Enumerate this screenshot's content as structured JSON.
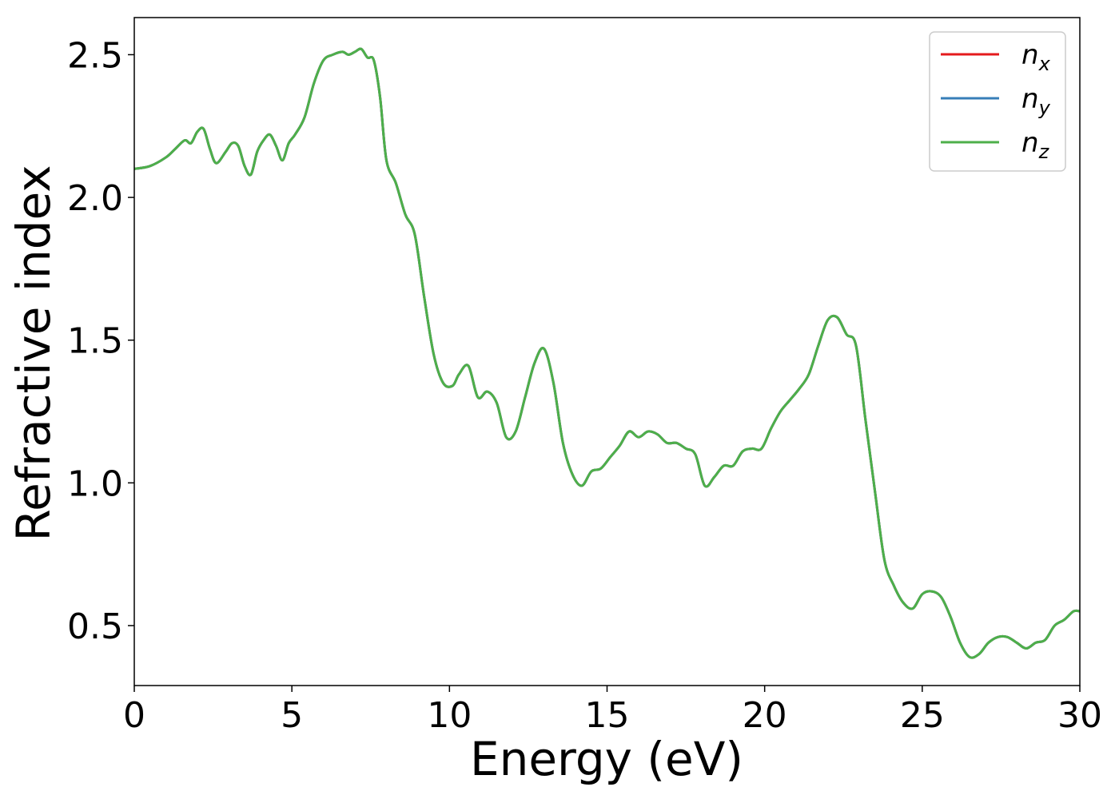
{
  "chart_data": {
    "type": "line",
    "title": "",
    "xlabel": "Energy (eV)",
    "ylabel": "Refractive index",
    "xlim": [
      0,
      30
    ],
    "ylim": [
      0.29,
      2.63
    ],
    "xticks": [
      0,
      5,
      10,
      15,
      20,
      25,
      30
    ],
    "xtick_labels": [
      "0",
      "5",
      "10",
      "15",
      "20",
      "25",
      "30"
    ],
    "yticks": [
      0.5,
      1.0,
      1.5,
      2.0,
      2.5
    ],
    "ytick_labels": [
      "0.5",
      "1.0",
      "1.5",
      "2.0",
      "2.5"
    ],
    "grid": false,
    "legend_position": "top-right",
    "x": [
      0.0,
      0.5,
      1.0,
      1.3,
      1.6,
      1.8,
      2.0,
      2.2,
      2.4,
      2.6,
      2.9,
      3.1,
      3.3,
      3.5,
      3.7,
      3.9,
      4.1,
      4.3,
      4.5,
      4.7,
      4.9,
      5.1,
      5.4,
      5.7,
      6.0,
      6.3,
      6.6,
      6.8,
      7.0,
      7.2,
      7.4,
      7.6,
      7.8,
      8.0,
      8.3,
      8.6,
      8.9,
      9.2,
      9.5,
      9.8,
      10.1,
      10.3,
      10.6,
      10.9,
      11.2,
      11.5,
      11.8,
      12.1,
      12.4,
      12.7,
      13.0,
      13.3,
      13.6,
      13.9,
      14.2,
      14.5,
      14.8,
      15.1,
      15.4,
      15.7,
      16.0,
      16.3,
      16.6,
      16.9,
      17.2,
      17.5,
      17.8,
      18.1,
      18.4,
      18.7,
      19.0,
      19.3,
      19.6,
      19.9,
      20.2,
      20.5,
      20.8,
      21.1,
      21.4,
      21.7,
      22.0,
      22.3,
      22.6,
      22.9,
      23.2,
      23.5,
      23.8,
      24.1,
      24.4,
      24.7,
      25.0,
      25.3,
      25.6,
      25.9,
      26.2,
      26.5,
      26.8,
      27.1,
      27.4,
      27.7,
      28.0,
      28.3,
      28.6,
      28.9,
      29.2,
      29.5,
      29.8,
      30.0
    ],
    "series": [
      {
        "name": "n_x",
        "color": "#e41a1c",
        "values": [
          2.1,
          2.11,
          2.14,
          2.17,
          2.2,
          2.19,
          2.23,
          2.24,
          2.17,
          2.12,
          2.16,
          2.19,
          2.18,
          2.11,
          2.08,
          2.16,
          2.2,
          2.22,
          2.18,
          2.13,
          2.19,
          2.22,
          2.28,
          2.4,
          2.48,
          2.5,
          2.51,
          2.5,
          2.51,
          2.52,
          2.49,
          2.48,
          2.35,
          2.13,
          2.05,
          1.94,
          1.87,
          1.65,
          1.45,
          1.35,
          1.34,
          1.38,
          1.41,
          1.3,
          1.32,
          1.28,
          1.16,
          1.18,
          1.3,
          1.42,
          1.47,
          1.35,
          1.14,
          1.03,
          0.99,
          1.04,
          1.05,
          1.09,
          1.13,
          1.18,
          1.16,
          1.18,
          1.17,
          1.14,
          1.14,
          1.12,
          1.1,
          0.99,
          1.02,
          1.06,
          1.06,
          1.11,
          1.12,
          1.12,
          1.19,
          1.25,
          1.29,
          1.33,
          1.38,
          1.48,
          1.57,
          1.58,
          1.52,
          1.48,
          1.22,
          0.97,
          0.73,
          0.64,
          0.58,
          0.56,
          0.61,
          0.62,
          0.6,
          0.53,
          0.44,
          0.39,
          0.4,
          0.44,
          0.46,
          0.46,
          0.44,
          0.42,
          0.44,
          0.45,
          0.5,
          0.52,
          0.55,
          0.55
        ]
      },
      {
        "name": "n_y",
        "color": "#377eb8",
        "values": [
          2.1,
          2.11,
          2.14,
          2.17,
          2.2,
          2.19,
          2.23,
          2.24,
          2.17,
          2.12,
          2.16,
          2.19,
          2.18,
          2.11,
          2.08,
          2.16,
          2.2,
          2.22,
          2.18,
          2.13,
          2.19,
          2.22,
          2.28,
          2.4,
          2.48,
          2.5,
          2.51,
          2.5,
          2.51,
          2.52,
          2.49,
          2.48,
          2.35,
          2.13,
          2.05,
          1.94,
          1.87,
          1.65,
          1.45,
          1.35,
          1.34,
          1.38,
          1.41,
          1.3,
          1.32,
          1.28,
          1.16,
          1.18,
          1.3,
          1.42,
          1.47,
          1.35,
          1.14,
          1.03,
          0.99,
          1.04,
          1.05,
          1.09,
          1.13,
          1.18,
          1.16,
          1.18,
          1.17,
          1.14,
          1.14,
          1.12,
          1.1,
          0.99,
          1.02,
          1.06,
          1.06,
          1.11,
          1.12,
          1.12,
          1.19,
          1.25,
          1.29,
          1.33,
          1.38,
          1.48,
          1.57,
          1.58,
          1.52,
          1.48,
          1.22,
          0.97,
          0.73,
          0.64,
          0.58,
          0.56,
          0.61,
          0.62,
          0.6,
          0.53,
          0.44,
          0.39,
          0.4,
          0.44,
          0.46,
          0.46,
          0.44,
          0.42,
          0.44,
          0.45,
          0.5,
          0.52,
          0.55,
          0.55
        ]
      },
      {
        "name": "n_z",
        "color": "#4daf4a",
        "values": [
          2.1,
          2.11,
          2.14,
          2.17,
          2.2,
          2.19,
          2.23,
          2.24,
          2.17,
          2.12,
          2.16,
          2.19,
          2.18,
          2.11,
          2.08,
          2.16,
          2.2,
          2.22,
          2.18,
          2.13,
          2.19,
          2.22,
          2.28,
          2.4,
          2.48,
          2.5,
          2.51,
          2.5,
          2.51,
          2.52,
          2.49,
          2.48,
          2.35,
          2.13,
          2.05,
          1.94,
          1.87,
          1.65,
          1.45,
          1.35,
          1.34,
          1.38,
          1.41,
          1.3,
          1.32,
          1.28,
          1.16,
          1.18,
          1.3,
          1.42,
          1.47,
          1.35,
          1.14,
          1.03,
          0.99,
          1.04,
          1.05,
          1.09,
          1.13,
          1.18,
          1.16,
          1.18,
          1.17,
          1.14,
          1.14,
          1.12,
          1.1,
          0.99,
          1.02,
          1.06,
          1.06,
          1.11,
          1.12,
          1.12,
          1.19,
          1.25,
          1.29,
          1.33,
          1.38,
          1.48,
          1.57,
          1.58,
          1.52,
          1.48,
          1.22,
          0.97,
          0.73,
          0.64,
          0.58,
          0.56,
          0.61,
          0.62,
          0.6,
          0.53,
          0.44,
          0.39,
          0.4,
          0.44,
          0.46,
          0.46,
          0.44,
          0.42,
          0.44,
          0.45,
          0.5,
          0.52,
          0.55,
          0.55
        ]
      }
    ],
    "legend": [
      {
        "base": "n",
        "sub": "x"
      },
      {
        "base": "n",
        "sub": "y"
      },
      {
        "base": "n",
        "sub": "z"
      }
    ]
  }
}
